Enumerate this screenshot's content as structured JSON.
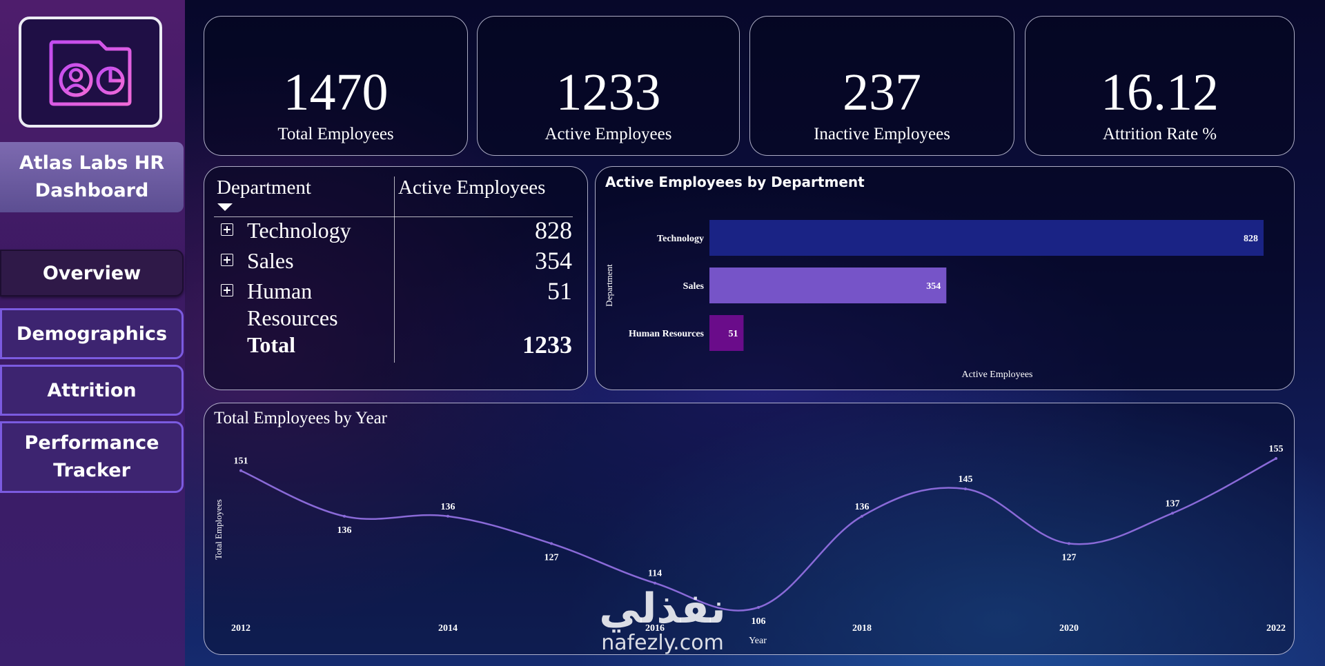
{
  "sidebar": {
    "logo_icon": "hr-dashboard-icon",
    "title": "Atlas Labs HR Dashboard",
    "nav": [
      "Overview",
      "Demographics",
      "Attrition",
      "Performance Tracker"
    ]
  },
  "kpis": [
    {
      "value": "1470",
      "label": "Total Employees"
    },
    {
      "value": "1233",
      "label": "Active Employees"
    },
    {
      "value": "237",
      "label": "Inactive Employees"
    },
    {
      "value": "16.12",
      "label": "Attrition Rate %"
    }
  ],
  "dept_table": {
    "headers": [
      "Department",
      "Active Employees"
    ],
    "rows": [
      {
        "name": "Technology",
        "value": "828"
      },
      {
        "name": "Sales",
        "value": "354"
      },
      {
        "name": "Human Resources",
        "value": "51"
      }
    ],
    "total_label": "Total",
    "total_value": "1233"
  },
  "chart_data": [
    {
      "type": "bar",
      "orientation": "horizontal",
      "title": "Active Employees by Department",
      "xlabel": "Active Employees",
      "ylabel": "Department",
      "categories": [
        "Technology",
        "Sales",
        "Human Resources"
      ],
      "values": [
        828,
        354,
        51
      ],
      "colors": [
        "#1a2385",
        "#7654c8",
        "#6a0c8a"
      ],
      "data_labels": true,
      "grid": false
    },
    {
      "type": "line",
      "title": "Total Employees by Year",
      "xlabel": "Year",
      "ylabel": "Total Employees",
      "x": [
        2012,
        2013,
        2014,
        2015,
        2016,
        2017,
        2018,
        2019,
        2020,
        2021,
        2022
      ],
      "x_ticks": [
        "2012",
        "2014",
        "2016",
        "2018",
        "2020",
        "2022"
      ],
      "values": [
        151,
        136,
        136,
        127,
        114,
        106,
        136,
        145,
        127,
        137,
        155
      ],
      "color": "#8a6ad8",
      "data_labels": true,
      "grid": false
    }
  ],
  "watermark": {
    "arabic": "نفذلي",
    "latin": "nafezly.com"
  }
}
